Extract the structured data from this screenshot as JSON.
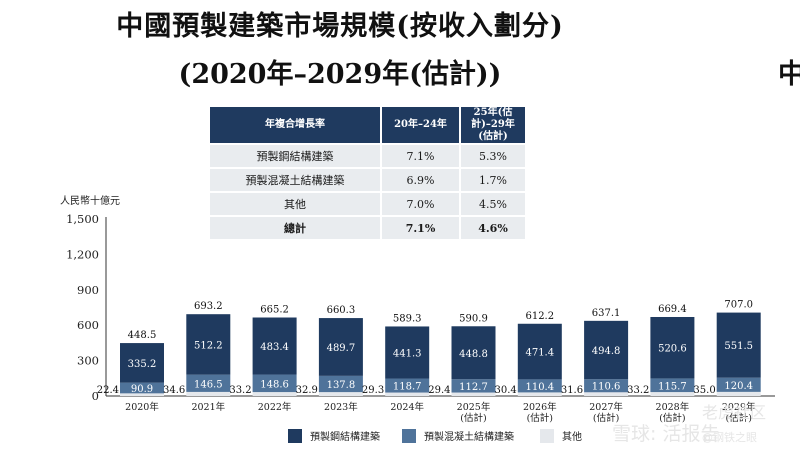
{
  "title_line1": "中國預製建築市場規模(按收入劃分)",
  "title_line2": "(2020年–2029年(估計))",
  "edge_char": "中",
  "cagr_table": {
    "headers": [
      "年複合增長率",
      "20年–24年",
      "25年(估計)–29年(估計)"
    ],
    "rows": [
      {
        "name": "預製鋼結構建築",
        "cagr1": "7.1%",
        "cagr2": "5.3%"
      },
      {
        "name": "預製混凝土結構建築",
        "cagr1": "6.9%",
        "cagr2": "1.7%"
      },
      {
        "name": "其他",
        "cagr1": "7.0%",
        "cagr2": "4.5%"
      },
      {
        "name": "總計",
        "cagr1": "7.1%",
        "cagr2": "4.6%"
      }
    ]
  },
  "chart_data": {
    "type": "bar",
    "stacked": true,
    "ylabel": "人民幣十億元",
    "ylim": [
      0,
      1500
    ],
    "yticks": [
      "0",
      "300",
      "600",
      "900",
      "1,200",
      "1,500"
    ],
    "categories": [
      "2020年",
      "2021年",
      "2022年",
      "2023年",
      "2024年",
      "2025年\n(估計)",
      "2026年\n(估計)",
      "2027年\n(估計)",
      "2028年\n(估計)",
      "2029年\n(估計)"
    ],
    "series": [
      {
        "name": "其他",
        "color": "#e5e8ec",
        "values": [
          22.4,
          34.6,
          33.2,
          32.9,
          29.3,
          29.4,
          30.4,
          31.6,
          33.2,
          35.0
        ],
        "labels": [
          "22.4",
          "34.6",
          "33.2",
          "32.9",
          "29.3",
          "29.4",
          "30.4",
          "31.6",
          "33.2",
          "35.0"
        ]
      },
      {
        "name": "預製混凝土結構建築",
        "color": "#4f739a",
        "values": [
          90.9,
          146.5,
          148.6,
          137.8,
          118.7,
          112.7,
          110.4,
          110.6,
          115.7,
          120.4
        ],
        "labels": [
          "90.9",
          "146.5",
          "148.6",
          "137.8",
          "118.7",
          "112.7",
          "110.4",
          "110.6",
          "115.7",
          "120.4"
        ]
      },
      {
        "name": "預製鋼結構建築",
        "color": "#1f3a5f",
        "values": [
          335.2,
          512.2,
          483.4,
          489.7,
          441.3,
          448.8,
          471.4,
          494.8,
          520.6,
          551.5
        ],
        "labels": [
          "335.2",
          "512.2",
          "483.4",
          "489.7",
          "441.3",
          "448.8",
          "471.4",
          "494.8",
          "520.6",
          "551.5"
        ]
      }
    ],
    "totals": [
      448.5,
      693.2,
      665.2,
      660.3,
      589.3,
      590.9,
      612.2,
      637.1,
      669.4,
      707.0
    ],
    "total_labels": [
      "448.5",
      "693.2",
      "665.2",
      "660.3",
      "589.3",
      "590.9",
      "612.2",
      "637.1",
      "669.4",
      "707.0"
    ],
    "legend": [
      "預製鋼結構建築",
      "預製混凝土結構建築",
      "其他"
    ]
  },
  "watermark": {
    "line1": "老虎社区",
    "line2": "雪球: 活报告",
    "line3": "@钢铁之眼"
  }
}
